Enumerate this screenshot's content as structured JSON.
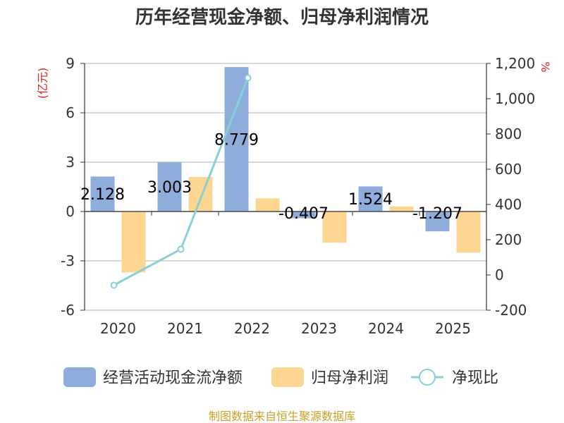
{
  "chart_data": {
    "type": "bar",
    "title": "历年经营现金净额、归母净利润情况",
    "categories": [
      "2020",
      "2021",
      "2022",
      "2023",
      "2024",
      "2025"
    ],
    "series": [
      {
        "name": "经营活动现金流净额",
        "type": "bar",
        "axis": "left",
        "color": "#8eaddb",
        "values": [
          2.128,
          3.003,
          8.779,
          -0.407,
          1.524,
          -1.207
        ],
        "labels": [
          "2.128",
          "3.003",
          "8.779",
          "-0.407",
          "1.524",
          "-1.207"
        ]
      },
      {
        "name": "归母净利润",
        "type": "bar",
        "axis": "left",
        "color": "#fdd692",
        "values": [
          -3.7,
          2.1,
          0.8,
          -1.9,
          0.3,
          -2.5
        ]
      },
      {
        "name": "净现比",
        "type": "line",
        "axis": "right",
        "color": "#86d0d6",
        "values": [
          -58,
          146,
          1118,
          null,
          null,
          null
        ]
      }
    ],
    "left_axis": {
      "unit": "(亿元)",
      "ylim": [
        -6,
        9
      ],
      "ticks": [
        "9",
        "6",
        "3",
        "0",
        "-3",
        "-6"
      ],
      "tick_values": [
        9,
        6,
        3,
        0,
        -3,
        -6
      ]
    },
    "right_axis": {
      "unit": "%",
      "ylim": [
        -200,
        1200
      ],
      "ticks": [
        "1,200",
        "1,000",
        "800",
        "600",
        "400",
        "200",
        "0",
        "-200"
      ],
      "tick_values": [
        1200,
        1000,
        800,
        600,
        400,
        200,
        0,
        -200
      ]
    },
    "grid": true,
    "legend": "bottom",
    "unit_color": "#e02020",
    "source": "制图数据来自恒生聚源数据库",
    "source_color": "#c9a227"
  }
}
